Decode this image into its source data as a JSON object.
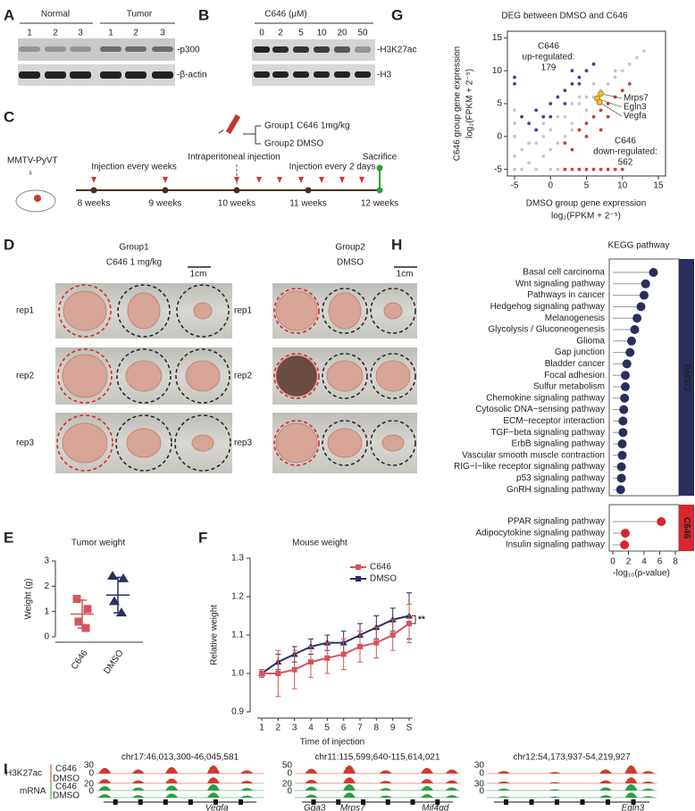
{
  "figure": {
    "panel_labels": [
      "A",
      "B",
      "C",
      "D",
      "E",
      "F",
      "G",
      "H",
      "I"
    ],
    "a": {
      "groups": [
        "Normal",
        "Tumor"
      ],
      "lanes": [
        "1",
        "2",
        "3",
        "1",
        "2",
        "3"
      ],
      "bands": [
        "-p300",
        "-β-actin"
      ]
    },
    "b": {
      "treatment": "C646 (μM)",
      "lanes": [
        "0",
        "2",
        "5",
        "10",
        "20",
        "50"
      ],
      "bands": [
        "-H3K27ac",
        "-H3"
      ]
    },
    "c": {
      "model": "MMTV-PyVT",
      "sex": "♀",
      "groups": [
        "Group1 C646 1mg/kg",
        "Group2 DMSO"
      ],
      "injection": "Intraperitoneal injection",
      "phase1": "Injection every weeks",
      "phase2": "Injection every 2 days",
      "end": "Sacrifice",
      "weeks": [
        "8 weeks",
        "9 weeks",
        "10 weeks",
        "11 weeks",
        "12 weeks"
      ]
    },
    "d": {
      "group1": [
        "Group1",
        "C646 1 mg/kg"
      ],
      "group2": [
        "Group2",
        "DMSO"
      ],
      "scale": "1cm",
      "reps": [
        "rep1",
        "rep2",
        "rep3"
      ]
    },
    "i": {
      "mark": "H3K27ac",
      "assay": "mRNA",
      "conditions": [
        "C646",
        "DMSO"
      ],
      "loci": [
        {
          "region": "chr17:46,013,300-46,045,581",
          "scales": [
            "30",
            "0",
            "20",
            "0"
          ],
          "genes": [
            "Vegfa"
          ]
        },
        {
          "region": "chr11:115,599,640-115,614,021",
          "scales": [
            "50",
            "0",
            "20",
            "0"
          ],
          "genes": [
            "Gga3",
            "Mrps7",
            "Mif4gd"
          ]
        },
        {
          "region": "chr12:54,173,937-54,219,927",
          "scales": [
            "30",
            "0",
            "30",
            "0"
          ],
          "genes": [
            "Egln3"
          ]
        }
      ]
    }
  },
  "chart_data": [
    {
      "type": "scatter",
      "title": "DEG between DMSO and C646",
      "x_label": [
        "DMSO group gene expression",
        "log₂(FPKM + 2⁻⁵)"
      ],
      "y_label": [
        "C646 group gene expression",
        "log₂(FPKM + 2⁻⁵)"
      ],
      "xlim": [
        -6,
        16
      ],
      "ylim": [
        -6,
        16
      ],
      "xticks": [
        -5,
        0,
        5,
        10,
        15
      ],
      "yticks": [
        -5,
        0,
        5,
        10,
        15
      ],
      "series": [
        {
          "color": "#c8c8c8",
          "x": [
            -5,
            -5,
            -5,
            -5,
            -5,
            -4,
            -3,
            -2,
            -1,
            0,
            1,
            2,
            3,
            4,
            5,
            6,
            7,
            8,
            9,
            10,
            11,
            -3,
            -1,
            1,
            3,
            5,
            7,
            9,
            -2,
            0,
            -4,
            1,
            12,
            13,
            0,
            2,
            4,
            -1,
            3,
            6
          ],
          "values": [
            -3,
            0,
            2,
            4,
            -5,
            -2,
            -4,
            -1,
            0,
            1,
            -1,
            3,
            2,
            5,
            4,
            6,
            7,
            8,
            9,
            10,
            11,
            -1,
            -3,
            3,
            1,
            6,
            5,
            10,
            -5,
            -5,
            -5,
            -5,
            12,
            13,
            -2,
            0,
            6,
            2,
            5,
            8
          ]
        },
        {
          "color": "#3d4494",
          "x": [
            -5,
            -5,
            -4,
            -3,
            -2,
            -1,
            0,
            1,
            2,
            3,
            4,
            5,
            6,
            -2,
            0,
            2,
            4,
            3
          ],
          "values": [
            8,
            9,
            3,
            2,
            4,
            3,
            5,
            6,
            7,
            8,
            9,
            10,
            11,
            1,
            3,
            5,
            8,
            10
          ]
        },
        {
          "color": "#d23a2e",
          "x": [
            2,
            3,
            4,
            5,
            6,
            7,
            8,
            9,
            10,
            2,
            3,
            4,
            5,
            6,
            7,
            8,
            9,
            10,
            5,
            7,
            8,
            11
          ],
          "values": [
            -5,
            -5,
            -5,
            -5,
            -5,
            -5,
            -5,
            -5,
            -5,
            -1,
            -2,
            1,
            2,
            3,
            4,
            5,
            6,
            7,
            0,
            1,
            3,
            8
          ]
        }
      ],
      "up": {
        "label": [
          "C646",
          "up-regulated:"
        ],
        "count": 179,
        "color": "#4b4fa0"
      },
      "down": {
        "label": [
          "C646",
          "down-regulated:"
        ],
        "count": 562,
        "color": "#d0433a"
      },
      "labeled_points": [
        {
          "label": "Mrps7",
          "x": 7,
          "y": 6.5
        },
        {
          "label": "Egln3",
          "x": 6.5,
          "y": 5.8
        },
        {
          "label": "Vegfa",
          "x": 6.8,
          "y": 5.2
        }
      ],
      "labeled_color": "#f2c12e"
    },
    {
      "type": "dotplot",
      "title": "Tumor weight",
      "y_label": "Weight (g)",
      "categories": [
        "C646",
        "DMSO"
      ],
      "ylim": [
        0,
        3
      ],
      "yticks": [
        0,
        1,
        2,
        3
      ],
      "groups": [
        {
          "values": [
            1.5,
            1.1,
            0.6,
            0.35
          ],
          "mean": 0.9,
          "error": 0.55,
          "color": "#d4555b",
          "marker": "square"
        },
        {
          "values": [
            2.4,
            2.3,
            1.4,
            0.95
          ],
          "mean": 1.65,
          "error": 0.7,
          "color": "#2c2e62",
          "marker": "triangle"
        }
      ]
    },
    {
      "type": "line",
      "title": "Mouse weight",
      "x_label": "Time of injection",
      "y_label": "Relative weight",
      "categories": [
        "1",
        "2",
        "3",
        "4",
        "5",
        "6",
        "7",
        "8",
        "9",
        "S"
      ],
      "ylim": [
        0.9,
        1.3
      ],
      "yticks": [
        0.9,
        {
          "value": 1,
          "label": "1.0"
        },
        1.1,
        1.2,
        1.3
      ],
      "legend": "upper-right",
      "annotation": "**",
      "series": [
        {
          "name": "C646",
          "color": "#d4555b",
          "marker": "square",
          "values": [
            1.0,
            1.0,
            1.01,
            1.03,
            1.04,
            1.05,
            1.07,
            1.08,
            1.1,
            1.13
          ],
          "errors": [
            0.01,
            0.06,
            0.05,
            0.04,
            0.04,
            0.04,
            0.04,
            0.04,
            0.04,
            0.05
          ]
        },
        {
          "name": "DMSO",
          "color": "#2c2e62",
          "marker": "triangle",
          "values": [
            1.0,
            1.03,
            1.05,
            1.07,
            1.08,
            1.08,
            1.1,
            1.12,
            1.14,
            1.15
          ],
          "errors": [
            0.01,
            0.02,
            0.02,
            0.02,
            0.02,
            0.03,
            0.03,
            0.03,
            0.03,
            0.06
          ]
        }
      ]
    },
    {
      "type": "lollipop",
      "title": "KEGG pathway",
      "x_label": "-log₁₀(p-value)",
      "xlim": [
        0,
        8
      ],
      "xticks": [
        0,
        2,
        4,
        6,
        8
      ],
      "panels": [
        {
          "name": "DMSO",
          "color": "#2b2d5c",
          "categories": [
            "Basal cell carcinoma",
            "Wnt signaling pathway",
            "Pathways in cancer",
            "Hedgehog signaling pathway",
            "Melanogenesis",
            "Glycolysis / Gluconeogenesis",
            "Glioma",
            "Gap junction",
            "Bladder cancer",
            "Focal adhesion",
            "Sulfur metabolism",
            "Chemokine signaling pathway",
            "Cytosolic DNA−sensing pathway",
            "ECM−receptor interaction",
            "TGF−beta signaling pathway",
            "ErbB signaling pathway",
            "Vascular smooth muscle contraction",
            "RIG−I−like receptor signaling pathway",
            "p53 signaling pathway",
            "GnRH signaling pathway"
          ],
          "values": [
            5.2,
            4.2,
            4.0,
            3.6,
            3.1,
            2.8,
            2.4,
            2.2,
            1.8,
            1.6,
            1.6,
            1.5,
            1.4,
            1.3,
            1.3,
            1.2,
            1.2,
            1.1,
            1.1,
            1.0
          ]
        },
        {
          "name": "C646",
          "color": "#d7262e",
          "categories": [
            "PPAR signaling pathway",
            "Adipocytokine signaling pathway",
            "Insulin signaling pathway"
          ],
          "values": [
            6.2,
            1.6,
            1.5
          ]
        }
      ]
    }
  ]
}
